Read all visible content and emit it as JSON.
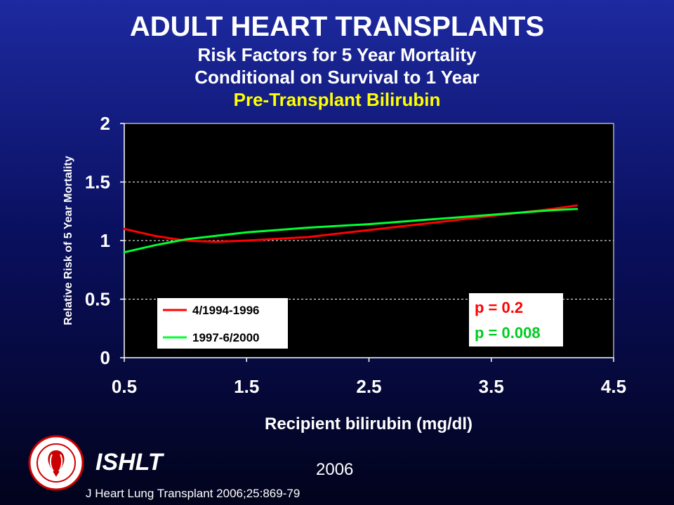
{
  "header": {
    "title": "ADULT HEART TRANSPLANTS",
    "subtitle1": "Risk Factors for 5 Year Mortality",
    "subtitle2": "Conditional on Survival to 1 Year",
    "subtitle3": "Pre-Transplant Bilirubin"
  },
  "chart_data": {
    "type": "line",
    "xlabel": "Recipient bilirubin (mg/dl)",
    "ylabel": "Relative Risk of 5 Year Mortality",
    "xlim": [
      0.5,
      4.5
    ],
    "ylim": [
      0,
      2
    ],
    "xticks": [
      "0.5",
      "1.5",
      "2.5",
      "3.5",
      "4.5"
    ],
    "yticks": [
      "0",
      "0.5",
      "1",
      "1.5",
      "2"
    ],
    "grid": "horizontal dashed",
    "legend_position": "bottom-left",
    "series": [
      {
        "name": "4/1994-1996",
        "color": "#ff0000",
        "x": [
          0.5,
          0.75,
          1.0,
          1.25,
          1.5,
          2.0,
          2.5,
          3.0,
          3.5,
          4.0,
          4.2
        ],
        "y": [
          1.1,
          1.04,
          1.0,
          0.99,
          1.0,
          1.03,
          1.09,
          1.15,
          1.21,
          1.27,
          1.3
        ]
      },
      {
        "name": "1997-6/2000",
        "color": "#00ff33",
        "x": [
          0.5,
          0.75,
          1.0,
          1.25,
          1.5,
          2.0,
          2.5,
          3.0,
          3.5,
          4.0,
          4.2
        ],
        "y": [
          0.9,
          0.96,
          1.01,
          1.04,
          1.07,
          1.11,
          1.14,
          1.18,
          1.22,
          1.26,
          1.27
        ]
      }
    ],
    "annotations": [
      {
        "text": "p = 0.2",
        "color": "#ff0000"
      },
      {
        "text": "p = 0.008",
        "color": "#00ff33"
      }
    ]
  },
  "footer": {
    "org": "ISHLT",
    "year": "2006",
    "citation": "J Heart Lung Transplant 2006;25:869-79"
  }
}
